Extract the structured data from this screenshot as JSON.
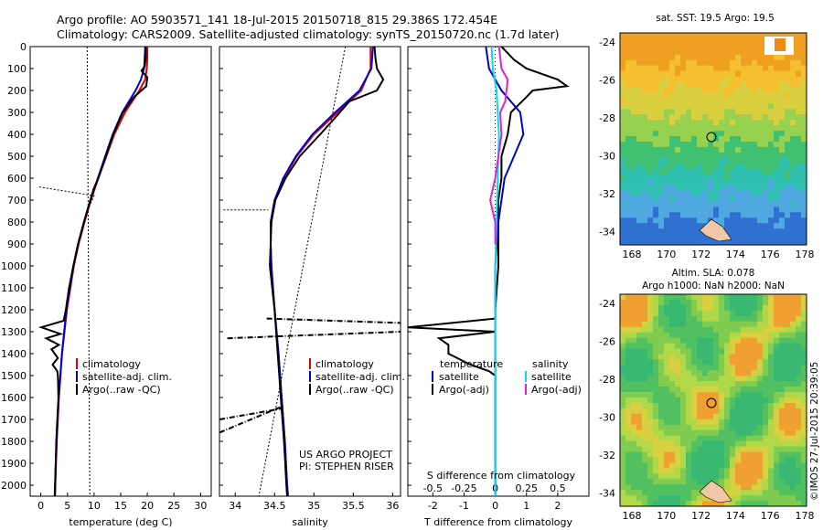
{
  "header": {
    "line1": "Argo profile: AO 5903571_141 18-Jul-2015 20150718_815 29.386S 172.454E",
    "line2": "Climatology: CARS2009. Satellite-adjusted climatology: synTS_20150720.nc (1.7d later)"
  },
  "chart_data": [
    {
      "type": "line",
      "name": "temperature-profile",
      "xlabel": "temperature (deg C)",
      "xlim": [
        -2,
        32
      ],
      "x_ticks": [
        "0",
        "5",
        "10",
        "15",
        "20",
        "25",
        "30"
      ],
      "ylim": [
        2050,
        0
      ],
      "y_ticks": [
        "0",
        "100",
        "200",
        "300",
        "400",
        "500",
        "600",
        "700",
        "800",
        "900",
        "1000",
        "1100",
        "1200",
        "1300",
        "1400",
        "1500",
        "1600",
        "1700",
        "1800",
        "1900",
        "2000"
      ],
      "legend": [
        "climatology",
        "satellite-adj. clim.",
        "Argo(..raw -QC)"
      ],
      "colors": {
        "climatology": "#e00000",
        "satellite": "#0000d0",
        "argo": "#000000"
      },
      "series": [
        {
          "key": "climatology",
          "depth": [
            0,
            50,
            100,
            150,
            200,
            300,
            400,
            500,
            600,
            700,
            800,
            900,
            1000,
            1200,
            1400,
            1600,
            1800,
            2000,
            2050
          ],
          "values": [
            20,
            20,
            19.9,
            19.6,
            18.5,
            15.8,
            13.8,
            12.3,
            10.8,
            9.4,
            8.2,
            7.1,
            6.2,
            4.9,
            4.0,
            3.4,
            3.0,
            2.7,
            2.65
          ]
        },
        {
          "key": "satellite",
          "depth": [
            0,
            50,
            100,
            150,
            200,
            300,
            400,
            500,
            600,
            700,
            800,
            900,
            1000,
            1200,
            1400,
            1600,
            1800,
            2000,
            2050
          ],
          "values": [
            19.6,
            19.5,
            19.4,
            18.8,
            17.8,
            15.3,
            13.5,
            12.1,
            10.7,
            9.3,
            8.1,
            7.0,
            6.1,
            4.8,
            3.95,
            3.35,
            2.95,
            2.65,
            2.6
          ]
        },
        {
          "key": "argo",
          "depth": [
            0,
            50,
            90,
            110,
            140,
            180,
            230,
            300,
            400,
            500,
            600,
            650,
            700,
            800,
            900,
            1000,
            1100,
            1200,
            1250,
            1280,
            1310,
            1330,
            1360,
            1380,
            1400,
            1420,
            1450,
            1480,
            1500,
            1600,
            1800,
            2000,
            2050
          ],
          "values": [
            19.7,
            19.7,
            19.5,
            18.9,
            20.0,
            19.8,
            17.5,
            15.4,
            13.6,
            12.2,
            10.8,
            9.9,
            9.3,
            8.1,
            7.0,
            6.1,
            5.3,
            4.7,
            4.3,
            0.1,
            3.7,
            1.0,
            3.4,
            2.0,
            2.6,
            3.2,
            2.2,
            3.1,
            3.2,
            3.3,
            2.9,
            2.7,
            2.65
          ]
        }
      ]
    },
    {
      "type": "line",
      "name": "salinity-profile",
      "xlabel": "salinity",
      "xlim": [
        33.8,
        36.1
      ],
      "x_ticks": [
        "34",
        "34.5",
        "35",
        "35.5",
        "36"
      ],
      "ylim": [
        2050,
        0
      ],
      "legend": [
        "climatology",
        "satellite-adj. clim.",
        "Argo(..raw -QC)"
      ],
      "annotation": [
        "US ARGO PROJECT",
        "PI: STEPHEN RISER"
      ],
      "series": [
        {
          "key": "climatology",
          "depth": [
            0,
            50,
            100,
            200,
            300,
            400,
            500,
            600,
            700,
            800,
            900,
            1000,
            1100,
            1200,
            1400,
            1600,
            1800,
            2000,
            2050
          ],
          "values": [
            35.72,
            35.72,
            35.72,
            35.6,
            35.3,
            35.0,
            34.78,
            34.62,
            34.5,
            34.45,
            34.45,
            34.46,
            34.48,
            34.5,
            34.55,
            34.59,
            34.63,
            34.66,
            34.67
          ]
        },
        {
          "key": "satellite",
          "depth": [
            0,
            50,
            100,
            200,
            300,
            400,
            500,
            600,
            700,
            800,
            900,
            1000,
            1100,
            1200,
            1400,
            1600,
            1800,
            2000,
            2050
          ],
          "values": [
            35.75,
            35.74,
            35.73,
            35.58,
            35.27,
            34.98,
            34.77,
            34.61,
            34.5,
            34.45,
            34.45,
            34.46,
            34.48,
            34.5,
            34.55,
            34.59,
            34.63,
            34.66,
            34.67
          ]
        },
        {
          "key": "argo",
          "depth": [
            0,
            50,
            100,
            150,
            200,
            250,
            300,
            400,
            500,
            600,
            700,
            800,
            900,
            1000,
            1100,
            1200,
            1400,
            1600,
            1800,
            2000,
            2050
          ],
          "values": [
            35.77,
            35.78,
            35.8,
            35.88,
            35.8,
            35.45,
            35.33,
            35.08,
            34.82,
            34.64,
            34.51,
            34.46,
            34.45,
            34.44,
            34.47,
            34.5,
            34.54,
            34.58,
            34.62,
            34.65,
            34.66
          ]
        }
      ]
    },
    {
      "type": "line",
      "name": "difference-profile",
      "xlabel": "T difference from climatology",
      "xlabel_top": "S difference from climatology",
      "xlim": [
        -2.8,
        3.0
      ],
      "x_ticks": [
        "-2",
        "-1",
        "0",
        "1",
        "2"
      ],
      "x_ticks_top": [
        "-0.5",
        "-0.25",
        "0",
        "0.25",
        "0.5"
      ],
      "ylim": [
        2050,
        0
      ],
      "legend_headers": [
        "temperature",
        "salinity"
      ],
      "legend_left": [
        "satellite",
        "Argo(-adj)"
      ],
      "legend_right": [
        "satellite",
        "Argo(-adj)"
      ],
      "colors": {
        "t_sat": "#0000d0",
        "t_argo": "#000000",
        "s_sat": "#00e0e0",
        "s_argo": "#e020e0"
      },
      "series": [
        {
          "key": "t_argo",
          "depth": [
            0,
            60,
            100,
            150,
            180,
            200,
            230,
            300,
            400,
            500,
            600,
            700,
            800,
            1000,
            1200,
            1240,
            1280,
            1300,
            1330,
            1360,
            1400,
            1450,
            1480,
            1500,
            1600,
            1800,
            2000,
            2050
          ],
          "values": [
            0.2,
            0.6,
            1.0,
            2.0,
            2.3,
            1.2,
            1.0,
            0.5,
            0.4,
            0.2,
            0.2,
            0.1,
            0.1,
            0.1,
            0.0,
            0.0,
            -2.8,
            0.0,
            -1.8,
            -1.5,
            -1.5,
            -0.8,
            -0.2,
            0.0,
            0.0,
            0.0,
            0.0,
            0.0
          ]
        },
        {
          "key": "t_sat",
          "depth": [
            0,
            100,
            200,
            300,
            400,
            500,
            600,
            800,
            1000,
            1200,
            1400,
            1600,
            1800,
            2000,
            2050
          ],
          "values": [
            -0.3,
            -0.2,
            0.2,
            0.8,
            0.9,
            0.6,
            0.3,
            0.1,
            0.0,
            0.0,
            0.0,
            0.0,
            0.0,
            0.0,
            0.0
          ]
        },
        {
          "key": "s_sat",
          "depth": [
            0,
            100,
            200,
            300,
            400,
            600,
            800,
            1000,
            1200,
            1400,
            1600,
            1800,
            2000,
            2050
          ],
          "values": [
            -0.03,
            -0.02,
            0.01,
            0.02,
            0.03,
            0.02,
            0.01,
            0.0,
            0.0,
            0.0,
            0.0,
            0.0,
            0.0,
            0.0
          ]
        },
        {
          "key": "s_argo",
          "depth": [
            0,
            100,
            150,
            200,
            250,
            300,
            400,
            600,
            700,
            800,
            900
          ],
          "values": [
            0.03,
            0.05,
            0.1,
            0.09,
            0.08,
            0.04,
            0.05,
            0.0,
            -0.04,
            0.0,
            0.0
          ]
        }
      ]
    }
  ],
  "maps": {
    "sst": {
      "title": "sat. SST: 19.5 Argo: 19.5",
      "x_ticks": [
        "168",
        "170",
        "172",
        "174",
        "176",
        "178"
      ],
      "y_ticks": [
        "-24",
        "-26",
        "-28",
        "-30",
        "-32",
        "-34"
      ]
    },
    "sla": {
      "title1": "Altim. SLA: 0.078",
      "title2": "Argo h1000: NaN h2000: NaN",
      "x_ticks": [
        "168",
        "170",
        "172",
        "174",
        "176",
        "178"
      ],
      "y_ticks": [
        "-24",
        "-26",
        "-28",
        "-30",
        "-32",
        "-34"
      ]
    }
  },
  "credit": "©IMOS 27-Jul-2015 20:39:05"
}
